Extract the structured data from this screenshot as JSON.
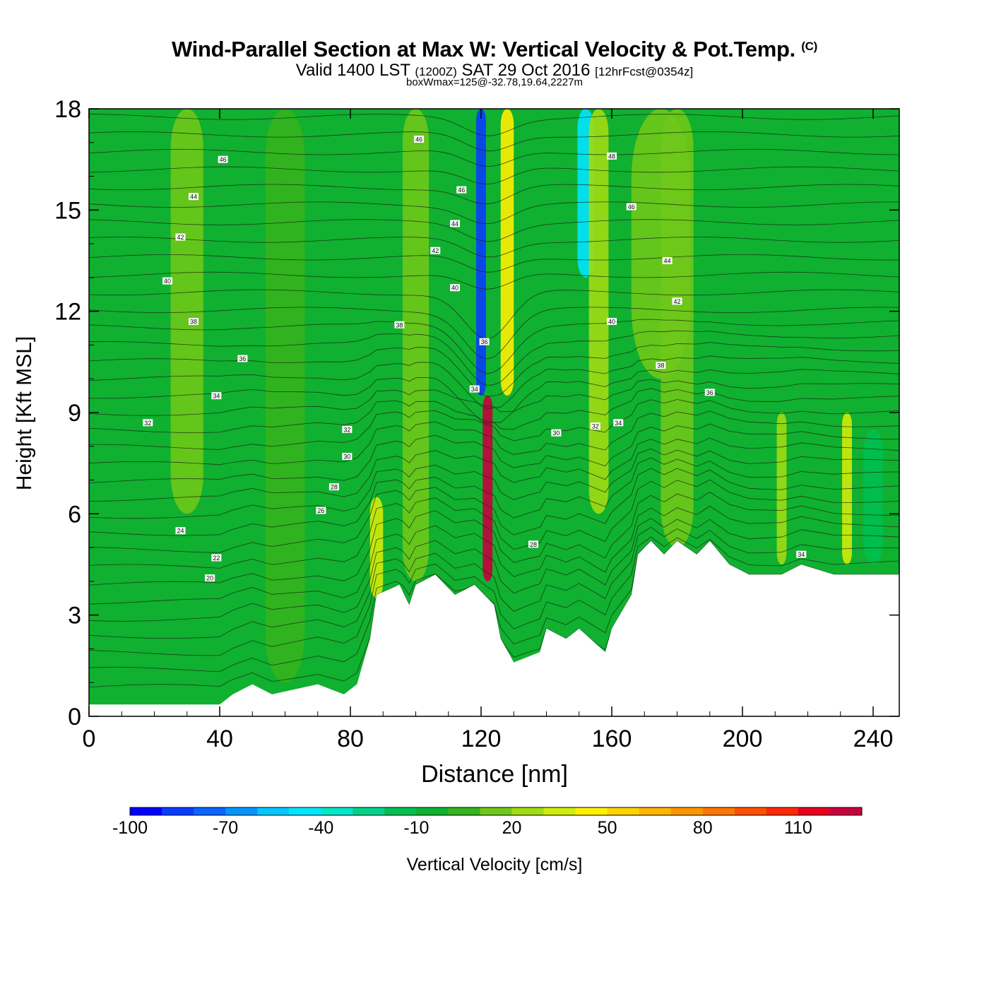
{
  "title": "Wind-Parallel Section at Max W: Vertical Velocity & Pot.Temp.",
  "title_mark": "(C)",
  "subtitle": {
    "valid": "Valid 1400 LST",
    "utc": "(1200Z)",
    "date": "SAT 29 Oct 2016",
    "forecast": "[12hrFcst@0354z]"
  },
  "subsubtitle": "boxWmax=125@-32.78,19.64,2227m",
  "chart_data": {
    "type": "heatmap",
    "xlabel": "Distance [nm]",
    "ylabel": "Height [Kft MSL]",
    "xlim": [
      0,
      248
    ],
    "ylim": [
      0,
      18
    ],
    "xticks": [
      "0",
      "40",
      "80",
      "120",
      "160",
      "200",
      "240"
    ],
    "yticks": [
      "0",
      "3",
      "6",
      "9",
      "12",
      "15",
      "18"
    ],
    "colorbar": {
      "label": "Vertical Velocity [cm/s]",
      "levels": [
        -100,
        -90,
        -80,
        -70,
        -60,
        -50,
        -40,
        -30,
        -20,
        -10,
        0,
        10,
        20,
        30,
        40,
        50,
        60,
        70,
        80,
        90,
        100,
        110,
        120,
        130
      ],
      "tick_labels": [
        "-100",
        "-70",
        "-40",
        "-10",
        "20",
        "50",
        "80",
        "110"
      ],
      "colors": [
        "#0000ff",
        "#0a3cff",
        "#0a64ff",
        "#0096ff",
        "#00c8ff",
        "#00e6ff",
        "#00e6c8",
        "#00d28c",
        "#00c050",
        "#10b030",
        "#34b41e",
        "#6ec81a",
        "#a0dc14",
        "#d2ec0a",
        "#fff000",
        "#ffd200",
        "#ffb400",
        "#ff9600",
        "#ff7800",
        "#ff5000",
        "#ff2800",
        "#e6001e",
        "#c8003c"
      ]
    },
    "terrain": [
      [
        0,
        0.35
      ],
      [
        40,
        0.35
      ],
      [
        44,
        0.65
      ],
      [
        50,
        0.95
      ],
      [
        56,
        0.65
      ],
      [
        70,
        0.95
      ],
      [
        78,
        0.65
      ],
      [
        82,
        0.95
      ],
      [
        86,
        2.3
      ],
      [
        88,
        3.6
      ],
      [
        95,
        3.9
      ],
      [
        98,
        3.3
      ],
      [
        100,
        3.9
      ],
      [
        106,
        4.2
      ],
      [
        112,
        3.6
      ],
      [
        118,
        3.9
      ],
      [
        124,
        3.3
      ],
      [
        126,
        2.3
      ],
      [
        130,
        1.6
      ],
      [
        138,
        1.9
      ],
      [
        140,
        2.6
      ],
      [
        146,
        2.3
      ],
      [
        150,
        2.6
      ],
      [
        158,
        1.9
      ],
      [
        160,
        2.6
      ],
      [
        166,
        3.6
      ],
      [
        168,
        4.8
      ],
      [
        172,
        5.2
      ],
      [
        176,
        4.8
      ],
      [
        180,
        5.2
      ],
      [
        186,
        4.8
      ],
      [
        190,
        5.2
      ],
      [
        196,
        4.5
      ],
      [
        202,
        4.2
      ],
      [
        212,
        4.2
      ],
      [
        218,
        4.5
      ],
      [
        228,
        4.2
      ],
      [
        248,
        4.2
      ]
    ],
    "velocity_features": [
      {
        "x": 122,
        "x_width": 3,
        "y_bottom": 4.0,
        "y_top": 9.5,
        "value": 125
      },
      {
        "x": 120,
        "x_width": 3,
        "y_bottom": 9.5,
        "y_top": 18,
        "value": -90
      },
      {
        "x": 128,
        "x_width": 4,
        "y_bottom": 9.5,
        "y_top": 18,
        "value": 45
      },
      {
        "x": 152,
        "x_width": 5,
        "y_bottom": 13,
        "y_top": 18,
        "value": -45
      },
      {
        "x": 156,
        "x_width": 6,
        "y_bottom": 6,
        "y_top": 18,
        "value": 25
      },
      {
        "x": 88,
        "x_width": 4,
        "y_bottom": 3.5,
        "y_top": 6.5,
        "value": 30
      },
      {
        "x": 232,
        "x_width": 3,
        "y_bottom": 4.5,
        "y_top": 9,
        "value": 30
      },
      {
        "x": 212,
        "x_width": 3,
        "y_bottom": 4.5,
        "y_top": 9,
        "value": 25
      },
      {
        "x": 240,
        "x_width": 6,
        "y_bottom": 4.5,
        "y_top": 8.5,
        "value": -15
      },
      {
        "x": 30,
        "x_width": 10,
        "y_bottom": 6,
        "y_top": 18,
        "value": 10
      },
      {
        "x": 60,
        "x_width": 12,
        "y_bottom": 1,
        "y_top": 18,
        "value": 8
      },
      {
        "x": 100,
        "x_width": 8,
        "y_bottom": 4,
        "y_top": 18,
        "value": 12
      },
      {
        "x": 180,
        "x_width": 10,
        "y_bottom": 5,
        "y_top": 18,
        "value": 12
      },
      {
        "x": 175,
        "x_width": 18,
        "y_bottom": 10,
        "y_top": 18,
        "value": 18
      }
    ],
    "isentrope_labels": [
      {
        "x": 41,
        "y": 16.5,
        "text": "46"
      },
      {
        "x": 32,
        "y": 15.4,
        "text": "44"
      },
      {
        "x": 28,
        "y": 14.2,
        "text": "42"
      },
      {
        "x": 24,
        "y": 12.9,
        "text": "40"
      },
      {
        "x": 32,
        "y": 11.7,
        "text": "38"
      },
      {
        "x": 47,
        "y": 10.6,
        "text": "36"
      },
      {
        "x": 39,
        "y": 9.5,
        "text": "34"
      },
      {
        "x": 18,
        "y": 8.7,
        "text": "32"
      },
      {
        "x": 79,
        "y": 8.5,
        "text": "32"
      },
      {
        "x": 79,
        "y": 7.7,
        "text": "30"
      },
      {
        "x": 75,
        "y": 6.8,
        "text": "28"
      },
      {
        "x": 71,
        "y": 6.1,
        "text": "26"
      },
      {
        "x": 28,
        "y": 5.5,
        "text": "24"
      },
      {
        "x": 39,
        "y": 4.7,
        "text": "22"
      },
      {
        "x": 37,
        "y": 4.1,
        "text": "20"
      },
      {
        "x": 101,
        "y": 17.1,
        "text": "46"
      },
      {
        "x": 114,
        "y": 15.6,
        "text": "46"
      },
      {
        "x": 112,
        "y": 14.6,
        "text": "44"
      },
      {
        "x": 106,
        "y": 13.8,
        "text": "42"
      },
      {
        "x": 112,
        "y": 12.7,
        "text": "40"
      },
      {
        "x": 95,
        "y": 11.6,
        "text": "38"
      },
      {
        "x": 121,
        "y": 11.1,
        "text": "36"
      },
      {
        "x": 118,
        "y": 9.7,
        "text": "34"
      },
      {
        "x": 136,
        "y": 5.1,
        "text": "28"
      },
      {
        "x": 143,
        "y": 8.4,
        "text": "30"
      },
      {
        "x": 155,
        "y": 8.6,
        "text": "32"
      },
      {
        "x": 162,
        "y": 8.7,
        "text": "34"
      },
      {
        "x": 160,
        "y": 16.6,
        "text": "48"
      },
      {
        "x": 166,
        "y": 15.1,
        "text": "46"
      },
      {
        "x": 177,
        "y": 13.5,
        "text": "44"
      },
      {
        "x": 180,
        "y": 12.3,
        "text": "42"
      },
      {
        "x": 160,
        "y": 11.7,
        "text": "40"
      },
      {
        "x": 175,
        "y": 10.4,
        "text": "38"
      },
      {
        "x": 190,
        "y": 9.6,
        "text": "36"
      },
      {
        "x": 218,
        "y": 4.8,
        "text": "34"
      }
    ]
  }
}
